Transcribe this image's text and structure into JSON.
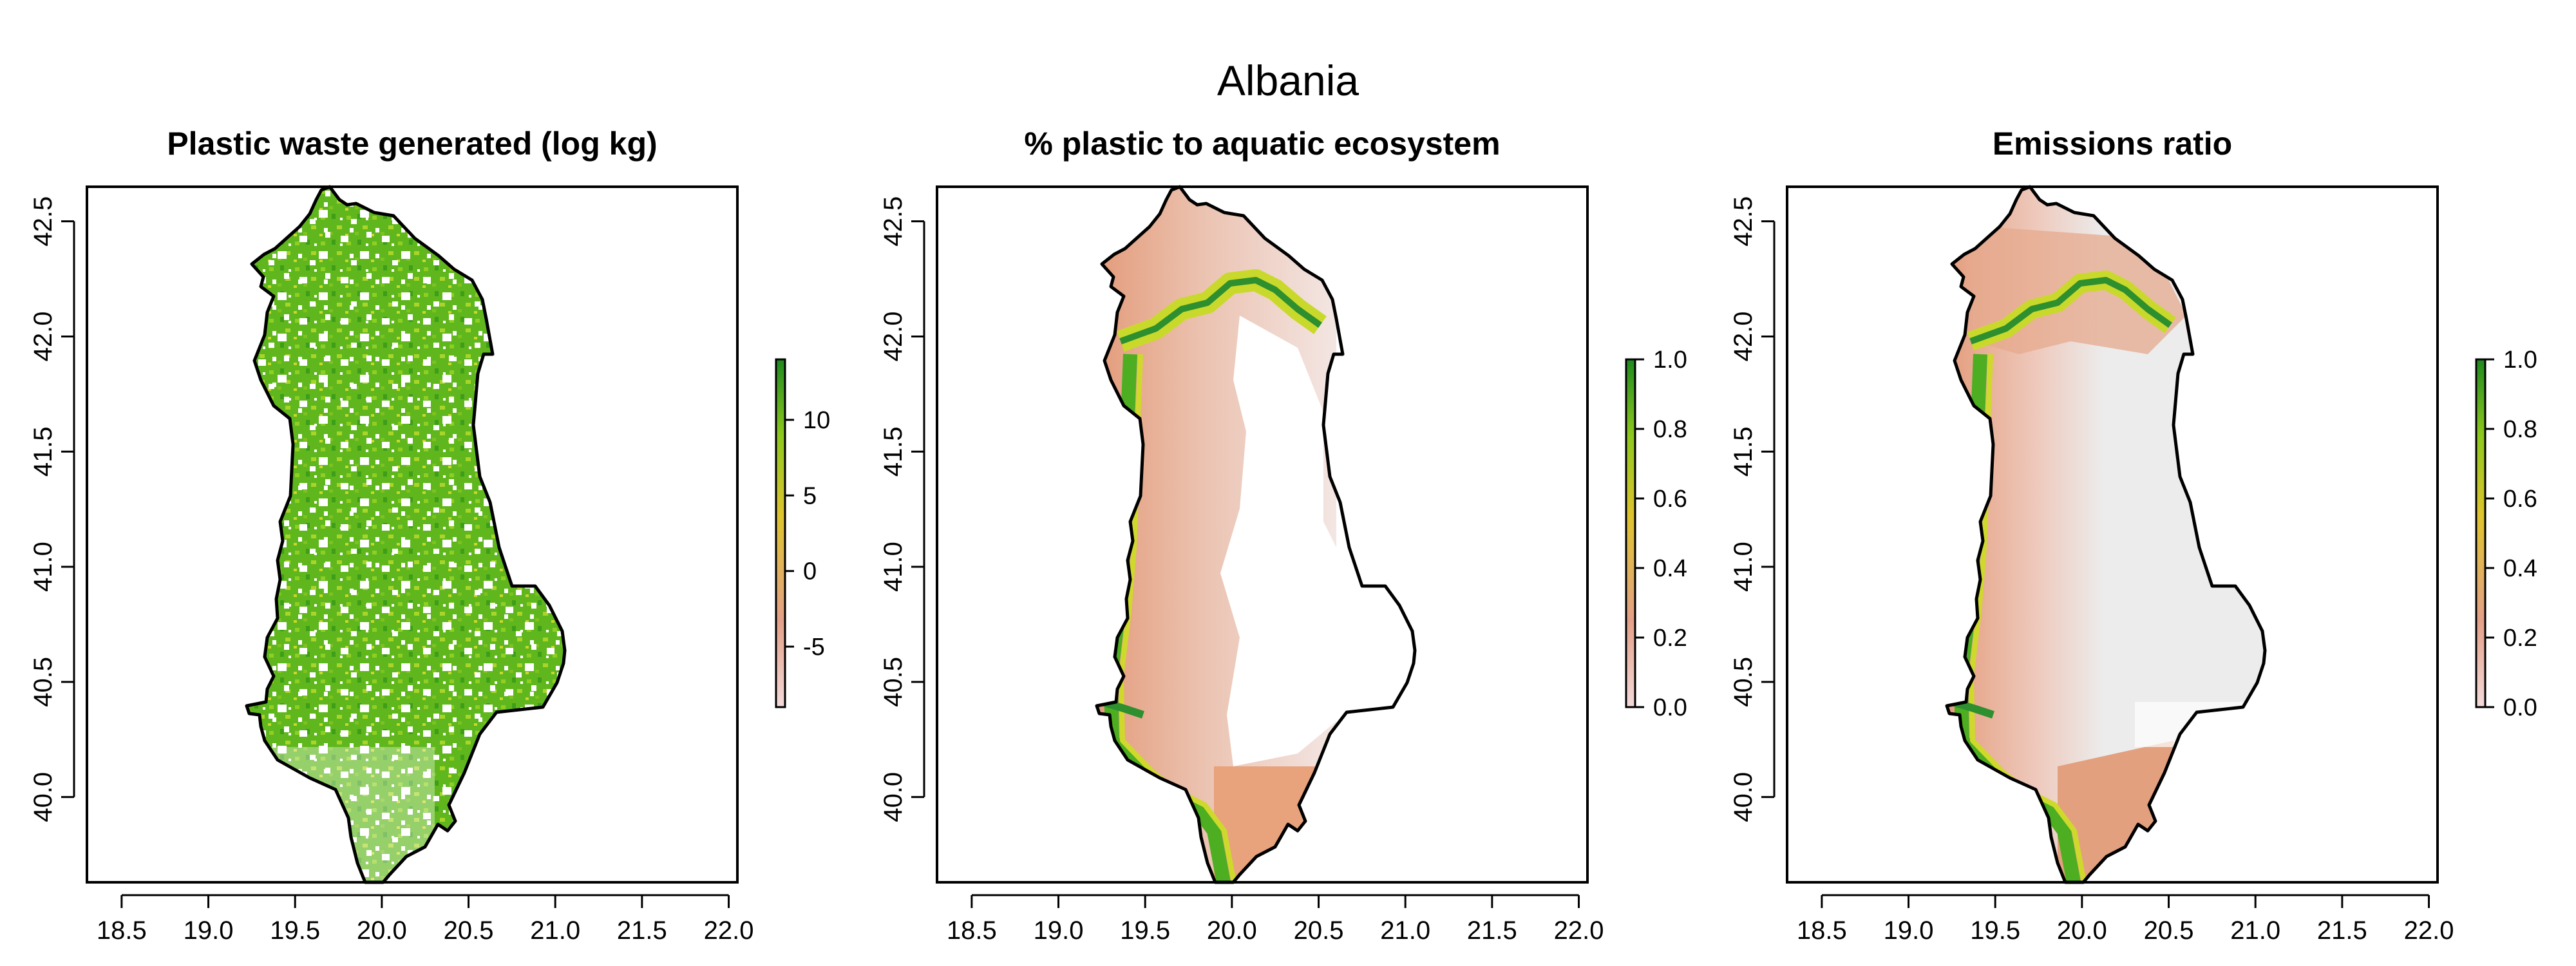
{
  "figure_title": "Albania",
  "colors": {
    "green_dark": "#1a8a1a",
    "green": "#4cb51e",
    "yellow_green": "#c6d92e",
    "salmon": "#e8a27c",
    "pale_pink": "#f2d8d3",
    "light_gray": "#ececec"
  },
  "panels": [
    {
      "title": "Plastic waste generated (log kg)",
      "x_ticks": [
        "18.5",
        "19.0",
        "19.5",
        "20.0",
        "20.5",
        "21.0",
        "21.5",
        "22.0"
      ],
      "y_ticks": [
        "40.0",
        "40.5",
        "41.0",
        "41.5",
        "42.0",
        "42.5"
      ],
      "legend_ticks": [
        "10",
        "5",
        "0",
        "-5"
      ],
      "legend_range": [
        -9,
        14
      ],
      "color_ramp": [
        "#f4dada",
        "#e4a088",
        "#dfc42e",
        "#8ec81e",
        "#1e8a1e"
      ]
    },
    {
      "title": "% plastic to aquatic ecosystem",
      "x_ticks": [
        "18.5",
        "19.0",
        "19.5",
        "20.0",
        "20.5",
        "21.0",
        "21.5",
        "22.0"
      ],
      "y_ticks": [
        "40.0",
        "40.5",
        "41.0",
        "41.5",
        "42.0",
        "42.5"
      ],
      "legend_ticks": [
        "1.0",
        "0.8",
        "0.6",
        "0.4",
        "0.2",
        "0.0"
      ],
      "legend_range": [
        0,
        1
      ],
      "color_ramp": [
        "#f4dada",
        "#e4a088",
        "#dfc42e",
        "#8ec81e",
        "#1e8a1e"
      ]
    },
    {
      "title": "Emissions ratio",
      "x_ticks": [
        "18.5",
        "19.0",
        "19.5",
        "20.0",
        "20.5",
        "21.0",
        "21.5",
        "22.0"
      ],
      "y_ticks": [
        "40.0",
        "40.5",
        "41.0",
        "41.5",
        "42.0",
        "42.5"
      ],
      "legend_ticks": [
        "1.0",
        "0.8",
        "0.6",
        "0.4",
        "0.2",
        "0.0"
      ],
      "legend_range": [
        0,
        1
      ],
      "color_ramp": [
        "#f4dada",
        "#e4a088",
        "#dfc42e",
        "#8ec81e",
        "#1e8a1e"
      ]
    }
  ],
  "map_extent": {
    "lon": [
      18.3,
      22.05
    ],
    "lat": [
      39.63,
      42.65
    ]
  }
}
